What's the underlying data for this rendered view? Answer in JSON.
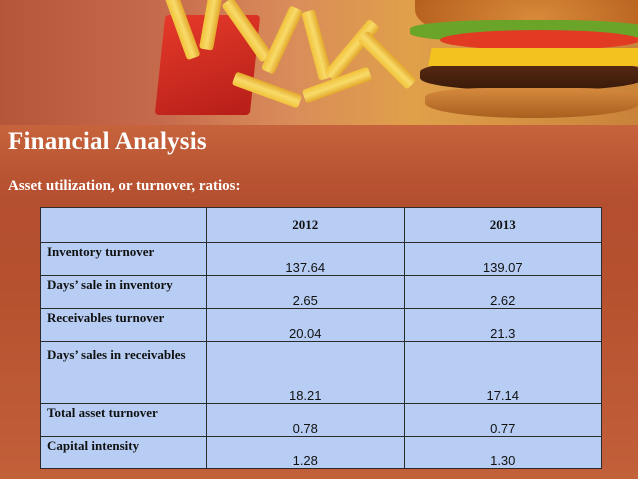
{
  "slide": {
    "title": "Financial Analysis",
    "subtitle": "Asset utilization, or turnover, ratios:"
  },
  "table": {
    "columns": [
      "",
      "2012",
      "2013"
    ],
    "rows": [
      {
        "label": "Inventory turnover",
        "v2012": "137.64",
        "v2013": "139.07"
      },
      {
        "label": "Days’ sale in inventory",
        "v2012": "2.65",
        "v2013": "2.62"
      },
      {
        "label": "Receivables turnover",
        "v2012": "20.04",
        "v2013": "21.3"
      },
      {
        "label": "Days’ sales in receivables",
        "v2012": "18.21",
        "v2013": "17.14"
      },
      {
        "label": "Total asset turnover",
        "v2012": "0.78",
        "v2013": "0.77"
      },
      {
        "label": "Capital intensity",
        "v2012": "1.28",
        "v2013": "1.30"
      }
    ]
  },
  "colors": {
    "background": "#b24c2f",
    "table_fill": "#b7cdf4",
    "title_text": "#ffffff"
  }
}
